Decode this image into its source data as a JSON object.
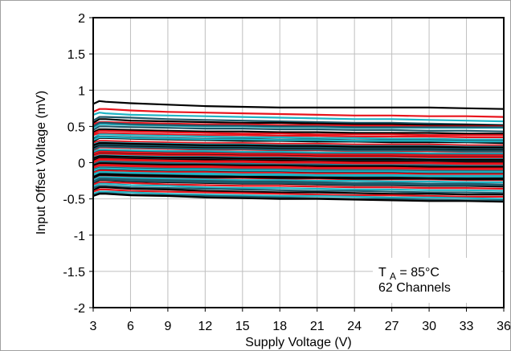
{
  "chart_data": {
    "type": "line",
    "title": "",
    "xlabel": "Supply Voltage (V)",
    "ylabel": "Input Offset Voltage (mV)",
    "xlim": [
      3,
      36
    ],
    "ylim": [
      -2,
      2
    ],
    "xticks": [
      3,
      6,
      9,
      12,
      15,
      18,
      21,
      24,
      27,
      30,
      33,
      36
    ],
    "xtick_labels": [
      "3",
      "6",
      "9",
      "12",
      "15",
      "18",
      "21",
      "24",
      "27",
      "30",
      "33",
      "36"
    ],
    "yticks": [
      2,
      1.5,
      1,
      0.5,
      0,
      -0.5,
      -1,
      -1.5,
      -2
    ],
    "ytick_labels": [
      "2",
      "1.5",
      "1",
      "0.5",
      "0",
      "-0.5",
      "-1",
      "-1.5",
      "-2"
    ],
    "grid": true,
    "annotation": {
      "ta_main": "T",
      "ta_sub": "A",
      "ta_rest": " = 85°C",
      "line2": "62 Channels"
    },
    "series_colors": [
      "#000000",
      "#e8141c",
      "#20b4c4",
      "#1e5a6a"
    ],
    "x": [
      3,
      3.5,
      4,
      6,
      9,
      12,
      15,
      18,
      21,
      24,
      27,
      30,
      33,
      36
    ],
    "series": [
      {
        "values": [
          0.81,
          0.85,
          0.84,
          0.82,
          0.8,
          0.78,
          0.77,
          0.76,
          0.76,
          0.76,
          0.76,
          0.76,
          0.75,
          0.74
        ]
      },
      {
        "values": [
          0.7,
          0.74,
          0.74,
          0.72,
          0.7,
          0.69,
          0.68,
          0.67,
          0.66,
          0.65,
          0.65,
          0.64,
          0.64,
          0.63
        ]
      },
      {
        "values": [
          0.66,
          0.69,
          0.68,
          0.66,
          0.65,
          0.64,
          0.63,
          0.62,
          0.61,
          0.6,
          0.6,
          0.59,
          0.58,
          0.57
        ]
      },
      {
        "values": [
          0.58,
          0.63,
          0.63,
          0.62,
          0.6,
          0.59,
          0.58,
          0.57,
          0.56,
          0.55,
          0.55,
          0.54,
          0.53,
          0.52
        ]
      },
      {
        "values": [
          0.55,
          0.6,
          0.6,
          0.58,
          0.57,
          0.56,
          0.55,
          0.55,
          0.54,
          0.53,
          0.53,
          0.52,
          0.52,
          0.51
        ]
      },
      {
        "values": [
          0.53,
          0.56,
          0.56,
          0.55,
          0.54,
          0.53,
          0.53,
          0.52,
          0.52,
          0.51,
          0.51,
          0.5,
          0.5,
          0.5
        ]
      },
      {
        "values": [
          0.48,
          0.53,
          0.53,
          0.52,
          0.51,
          0.5,
          0.5,
          0.49,
          0.49,
          0.48,
          0.48,
          0.48,
          0.48,
          0.48
        ]
      },
      {
        "values": [
          0.45,
          0.5,
          0.5,
          0.49,
          0.48,
          0.47,
          0.47,
          0.46,
          0.46,
          0.45,
          0.45,
          0.44,
          0.44,
          0.43
        ]
      },
      {
        "values": [
          0.42,
          0.46,
          0.46,
          0.45,
          0.44,
          0.43,
          0.43,
          0.42,
          0.42,
          0.41,
          0.41,
          0.41,
          0.4,
          0.4
        ]
      },
      {
        "values": [
          0.38,
          0.41,
          0.41,
          0.4,
          0.39,
          0.38,
          0.38,
          0.37,
          0.37,
          0.36,
          0.36,
          0.36,
          0.35,
          0.35
        ]
      },
      {
        "values": [
          0.34,
          0.39,
          0.39,
          0.38,
          0.37,
          0.36,
          0.35,
          0.35,
          0.34,
          0.34,
          0.33,
          0.33,
          0.32,
          0.32
        ]
      },
      {
        "values": [
          0.33,
          0.36,
          0.36,
          0.35,
          0.34,
          0.33,
          0.33,
          0.32,
          0.32,
          0.31,
          0.31,
          0.31,
          0.3,
          0.3
        ]
      },
      {
        "values": [
          0.29,
          0.34,
          0.34,
          0.33,
          0.32,
          0.31,
          0.3,
          0.3,
          0.29,
          0.29,
          0.28,
          0.28,
          0.28,
          0.27
        ]
      },
      {
        "values": [
          0.27,
          0.3,
          0.3,
          0.29,
          0.28,
          0.27,
          0.27,
          0.26,
          0.26,
          0.25,
          0.25,
          0.25,
          0.24,
          0.24
        ]
      },
      {
        "values": [
          0.25,
          0.28,
          0.28,
          0.27,
          0.26,
          0.25,
          0.25,
          0.24,
          0.24,
          0.23,
          0.23,
          0.23,
          0.22,
          0.22
        ]
      },
      {
        "values": [
          0.22,
          0.25,
          0.25,
          0.24,
          0.23,
          0.22,
          0.22,
          0.21,
          0.21,
          0.2,
          0.2,
          0.2,
          0.19,
          0.19
        ]
      },
      {
        "values": [
          0.2,
          0.23,
          0.23,
          0.22,
          0.21,
          0.2,
          0.2,
          0.19,
          0.19,
          0.18,
          0.18,
          0.18,
          0.17,
          0.17
        ]
      },
      {
        "values": [
          0.17,
          0.21,
          0.21,
          0.2,
          0.19,
          0.18,
          0.18,
          0.17,
          0.17,
          0.16,
          0.16,
          0.16,
          0.15,
          0.15
        ]
      },
      {
        "values": [
          0.15,
          0.18,
          0.18,
          0.17,
          0.16,
          0.16,
          0.15,
          0.15,
          0.14,
          0.14,
          0.14,
          0.13,
          0.13,
          0.13
        ]
      },
      {
        "values": [
          0.13,
          0.16,
          0.16,
          0.15,
          0.14,
          0.14,
          0.13,
          0.13,
          0.12,
          0.12,
          0.12,
          0.11,
          0.11,
          0.11
        ]
      },
      {
        "values": [
          0.11,
          0.14,
          0.14,
          0.13,
          0.12,
          0.12,
          0.11,
          0.11,
          0.1,
          0.1,
          0.1,
          0.09,
          0.09,
          0.09
        ]
      },
      {
        "values": [
          0.09,
          0.12,
          0.12,
          0.11,
          0.1,
          0.1,
          0.09,
          0.09,
          0.08,
          0.08,
          0.08,
          0.07,
          0.07,
          0.07
        ]
      },
      {
        "values": [
          0.07,
          0.1,
          0.1,
          0.09,
          0.08,
          0.08,
          0.07,
          0.07,
          0.06,
          0.06,
          0.06,
          0.05,
          0.05,
          0.05
        ]
      },
      {
        "values": [
          0.05,
          0.08,
          0.08,
          0.07,
          0.06,
          0.06,
          0.05,
          0.05,
          0.04,
          0.04,
          0.04,
          0.03,
          0.03,
          0.03
        ]
      },
      {
        "values": [
          0.03,
          0.06,
          0.06,
          0.05,
          0.04,
          0.04,
          0.03,
          0.03,
          0.02,
          0.02,
          0.02,
          0.01,
          0.01,
          0.01
        ]
      },
      {
        "values": [
          0.01,
          0.05,
          0.05,
          0.04,
          0.03,
          0.02,
          0.02,
          0.01,
          0.01,
          0.0,
          0.0,
          0.0,
          -0.01,
          -0.01
        ]
      },
      {
        "values": [
          -0.01,
          0.03,
          0.03,
          0.02,
          0.01,
          0.0,
          0.0,
          -0.01,
          -0.01,
          -0.02,
          -0.02,
          -0.02,
          -0.03,
          -0.03
        ]
      },
      {
        "values": [
          -0.03,
          0.01,
          0.01,
          0.0,
          -0.01,
          -0.02,
          -0.02,
          -0.03,
          -0.03,
          -0.04,
          -0.04,
          -0.04,
          -0.05,
          -0.05
        ]
      },
      {
        "values": [
          -0.04,
          -0.01,
          -0.01,
          -0.02,
          -0.03,
          -0.03,
          -0.04,
          -0.04,
          -0.05,
          -0.05,
          -0.05,
          -0.06,
          -0.06,
          -0.06
        ]
      },
      {
        "values": [
          -0.06,
          -0.03,
          -0.03,
          -0.04,
          -0.05,
          -0.05,
          -0.06,
          -0.06,
          -0.07,
          -0.07,
          -0.07,
          -0.08,
          -0.08,
          -0.08
        ]
      },
      {
        "values": [
          -0.08,
          -0.05,
          -0.05,
          -0.06,
          -0.07,
          -0.07,
          -0.08,
          -0.08,
          -0.09,
          -0.09,
          -0.09,
          -0.1,
          -0.1,
          -0.1
        ]
      },
      {
        "values": [
          -0.1,
          -0.07,
          -0.07,
          -0.08,
          -0.09,
          -0.09,
          -0.1,
          -0.1,
          -0.11,
          -0.11,
          -0.11,
          -0.12,
          -0.12,
          -0.12
        ]
      },
      {
        "values": [
          -0.12,
          -0.09,
          -0.09,
          -0.1,
          -0.11,
          -0.11,
          -0.12,
          -0.12,
          -0.13,
          -0.13,
          -0.13,
          -0.14,
          -0.14,
          -0.14
        ]
      },
      {
        "values": [
          -0.14,
          -0.11,
          -0.11,
          -0.12,
          -0.13,
          -0.13,
          -0.14,
          -0.14,
          -0.15,
          -0.15,
          -0.15,
          -0.16,
          -0.16,
          -0.16
        ]
      },
      {
        "values": [
          -0.16,
          -0.13,
          -0.13,
          -0.14,
          -0.15,
          -0.15,
          -0.16,
          -0.16,
          -0.17,
          -0.17,
          -0.17,
          -0.18,
          -0.18,
          -0.18
        ]
      },
      {
        "values": [
          -0.18,
          -0.14,
          -0.14,
          -0.15,
          -0.16,
          -0.17,
          -0.17,
          -0.18,
          -0.18,
          -0.19,
          -0.19,
          -0.19,
          -0.2,
          -0.2
        ]
      },
      {
        "values": [
          -0.2,
          -0.16,
          -0.16,
          -0.17,
          -0.18,
          -0.19,
          -0.19,
          -0.2,
          -0.2,
          -0.21,
          -0.21,
          -0.21,
          -0.22,
          -0.22
        ]
      },
      {
        "values": [
          -0.22,
          -0.18,
          -0.18,
          -0.19,
          -0.2,
          -0.21,
          -0.21,
          -0.22,
          -0.22,
          -0.23,
          -0.23,
          -0.23,
          -0.24,
          -0.24
        ]
      },
      {
        "values": [
          -0.24,
          -0.2,
          -0.2,
          -0.21,
          -0.22,
          -0.23,
          -0.24,
          -0.24,
          -0.25,
          -0.25,
          -0.26,
          -0.26,
          -0.27,
          -0.27
        ]
      },
      {
        "values": [
          -0.26,
          -0.22,
          -0.22,
          -0.23,
          -0.24,
          -0.25,
          -0.26,
          -0.26,
          -0.27,
          -0.28,
          -0.28,
          -0.29,
          -0.29,
          -0.3
        ]
      },
      {
        "values": [
          -0.28,
          -0.24,
          -0.24,
          -0.26,
          -0.27,
          -0.28,
          -0.29,
          -0.29,
          -0.3,
          -0.31,
          -0.31,
          -0.32,
          -0.32,
          -0.33
        ]
      },
      {
        "values": [
          -0.3,
          -0.27,
          -0.27,
          -0.28,
          -0.3,
          -0.31,
          -0.32,
          -0.32,
          -0.33,
          -0.34,
          -0.34,
          -0.35,
          -0.35,
          -0.36
        ]
      },
      {
        "values": [
          -0.33,
          -0.29,
          -0.29,
          -0.31,
          -0.32,
          -0.34,
          -0.35,
          -0.35,
          -0.36,
          -0.37,
          -0.37,
          -0.38,
          -0.38,
          -0.39
        ]
      },
      {
        "values": [
          -0.35,
          -0.32,
          -0.32,
          -0.34,
          -0.35,
          -0.36,
          -0.37,
          -0.38,
          -0.39,
          -0.39,
          -0.4,
          -0.41,
          -0.41,
          -0.42
        ]
      },
      {
        "values": [
          -0.38,
          -0.34,
          -0.34,
          -0.36,
          -0.37,
          -0.39,
          -0.4,
          -0.41,
          -0.41,
          -0.42,
          -0.43,
          -0.43,
          -0.44,
          -0.44
        ]
      },
      {
        "values": [
          -0.4,
          -0.37,
          -0.37,
          -0.39,
          -0.4,
          -0.41,
          -0.42,
          -0.43,
          -0.44,
          -0.45,
          -0.45,
          -0.46,
          -0.47,
          -0.47
        ]
      },
      {
        "values": [
          -0.43,
          -0.4,
          -0.4,
          -0.41,
          -0.43,
          -0.44,
          -0.45,
          -0.46,
          -0.46,
          -0.47,
          -0.48,
          -0.48,
          -0.49,
          -0.5
        ]
      },
      {
        "values": [
          -0.45,
          -0.42,
          -0.42,
          -0.44,
          -0.45,
          -0.46,
          -0.47,
          -0.48,
          -0.49,
          -0.5,
          -0.5,
          -0.51,
          -0.52,
          -0.52
        ]
      },
      {
        "values": [
          -0.46,
          -0.43,
          -0.43,
          -0.45,
          -0.46,
          -0.48,
          -0.49,
          -0.5,
          -0.5,
          -0.51,
          -0.52,
          -0.53,
          -0.53,
          -0.54
        ]
      },
      {
        "values": [
          0.4,
          0.44,
          0.44,
          0.43,
          0.42,
          0.41,
          0.4,
          0.4,
          0.39,
          0.39,
          0.39,
          0.38,
          0.38,
          0.38
        ]
      },
      {
        "values": [
          0.31,
          0.35,
          0.35,
          0.34,
          0.33,
          0.32,
          0.32,
          0.31,
          0.31,
          0.3,
          0.3,
          0.3,
          0.29,
          0.29
        ]
      },
      {
        "values": [
          0.18,
          0.22,
          0.22,
          0.21,
          0.2,
          0.19,
          0.19,
          0.18,
          0.18,
          0.17,
          0.17,
          0.17,
          0.16,
          0.16
        ]
      },
      {
        "values": [
          0.06,
          0.09,
          0.09,
          0.08,
          0.07,
          0.07,
          0.06,
          0.06,
          0.05,
          0.05,
          0.05,
          0.04,
          0.04,
          0.04
        ]
      },
      {
        "values": [
          -0.07,
          -0.04,
          -0.04,
          -0.05,
          -0.06,
          -0.06,
          -0.07,
          -0.07,
          -0.08,
          -0.08,
          -0.08,
          -0.09,
          -0.09,
          -0.09
        ]
      },
      {
        "values": [
          -0.17,
          -0.13,
          -0.13,
          -0.14,
          -0.15,
          -0.16,
          -0.17,
          -0.17,
          -0.18,
          -0.18,
          -0.18,
          -0.19,
          -0.19,
          -0.19
        ]
      },
      {
        "values": [
          -0.27,
          -0.23,
          -0.23,
          -0.25,
          -0.26,
          -0.27,
          -0.28,
          -0.28,
          -0.29,
          -0.3,
          -0.3,
          -0.31,
          -0.31,
          -0.31
        ]
      },
      {
        "values": [
          0.24,
          0.27,
          0.27,
          0.26,
          0.25,
          0.24,
          0.24,
          0.23,
          0.23,
          0.22,
          0.22,
          0.22,
          0.21,
          0.21
        ]
      },
      {
        "values": [
          0.0,
          0.04,
          0.04,
          0.03,
          0.02,
          0.01,
          0.01,
          0.0,
          0.0,
          -0.01,
          -0.01,
          -0.01,
          -0.02,
          -0.02
        ]
      },
      {
        "values": [
          -0.11,
          -0.08,
          -0.08,
          -0.09,
          -0.1,
          -0.1,
          -0.11,
          -0.11,
          -0.12,
          -0.12,
          -0.12,
          -0.13,
          -0.13,
          -0.13
        ]
      },
      {
        "values": [
          0.5,
          0.55,
          0.55,
          0.53,
          0.52,
          0.51,
          0.51,
          0.5,
          0.5,
          0.49,
          0.49,
          0.49,
          0.49,
          0.49
        ]
      },
      {
        "values": [
          -0.21,
          -0.17,
          -0.17,
          -0.18,
          -0.19,
          -0.2,
          -0.2,
          -0.21,
          -0.21,
          -0.22,
          -0.22,
          -0.22,
          -0.23,
          -0.23
        ]
      },
      {
        "values": [
          0.12,
          0.15,
          0.15,
          0.14,
          0.13,
          0.13,
          0.12,
          0.12,
          0.11,
          0.11,
          0.11,
          0.1,
          0.1,
          0.1
        ]
      }
    ]
  }
}
